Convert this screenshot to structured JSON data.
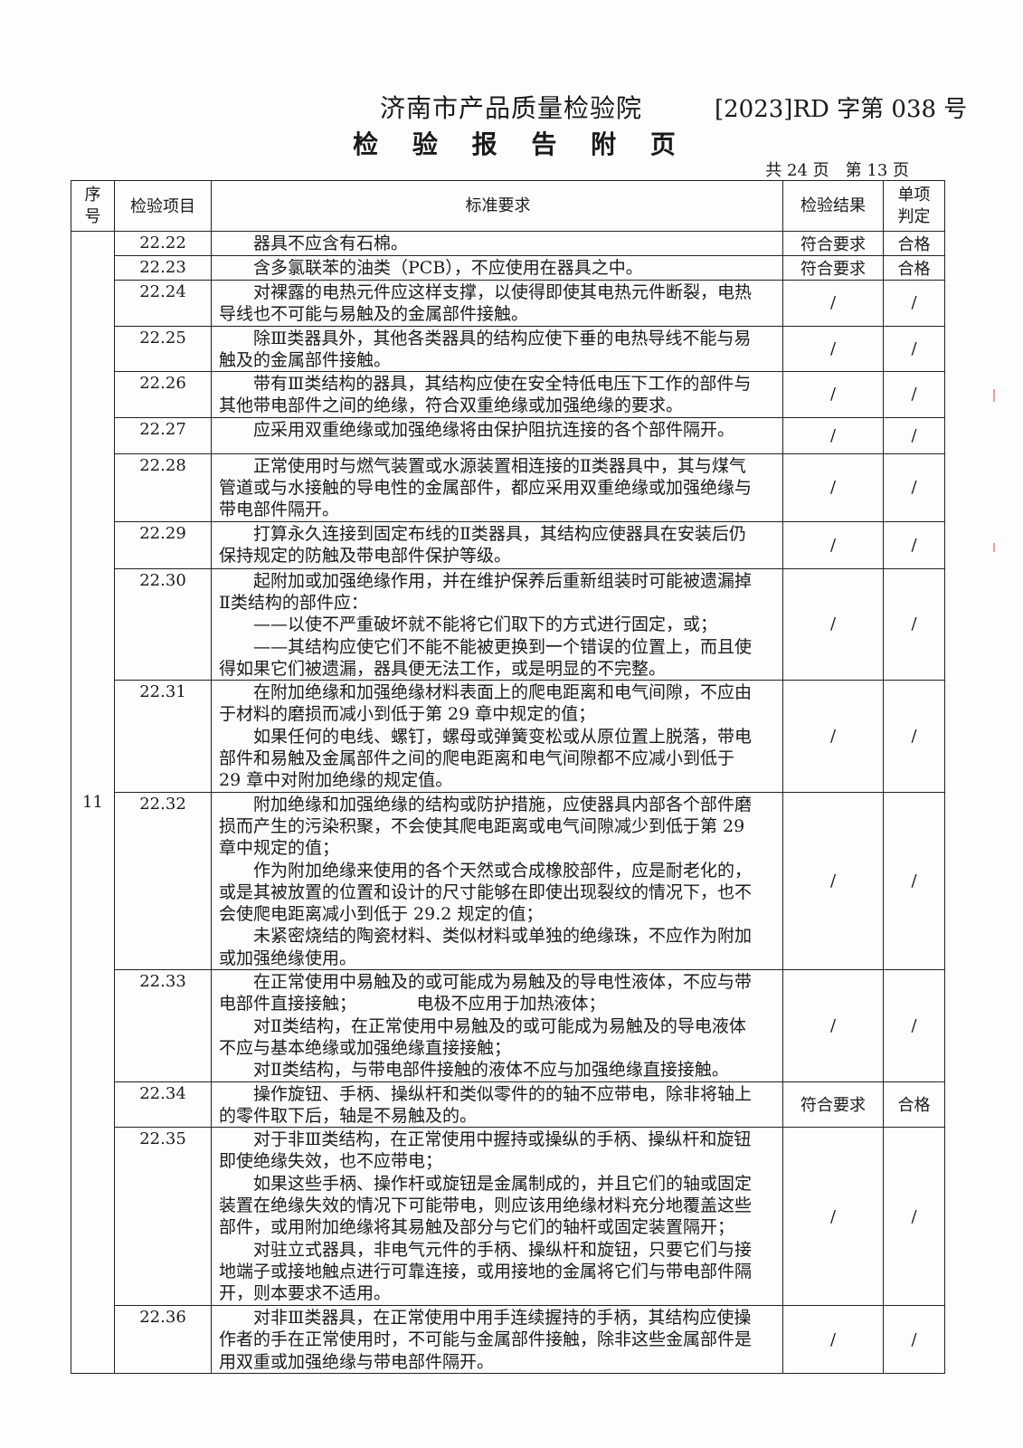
{
  "header": {
    "organization": "济南市产品质量检验院",
    "report_number": "[2023]RD 字第 038 号",
    "title": "检 验 报 告 附 页",
    "page_info": "共 24 页　第 13 页"
  },
  "table": {
    "columns": [
      "序\n号",
      "检验项目",
      "标准要求",
      "检验结果",
      "单项\n判定"
    ],
    "group_no": "11",
    "rows": [
      {
        "item": "22.22",
        "lines": [
          "　　器具不应含有石棉。"
        ],
        "result": "符合要求",
        "judgement": "合格"
      },
      {
        "item": "22.23",
        "lines": [
          "　　含多氯联苯的油类（PCB），不应使用在器具之中。"
        ],
        "result": "符合要求",
        "judgement": "合格"
      },
      {
        "item": "22.24",
        "lines": [
          "　　对裸露的电热元件应这样支撑，以使得即使其电热元件断裂，电热",
          "导线也不可能与易触及的金属部件接触。"
        ],
        "result": "/",
        "judgement": "/"
      },
      {
        "item": "22.25",
        "lines": [
          "　　除Ⅲ类器具外，其他各类器具的结构应使下垂的电热导线不能与易",
          "触及的金属部件接触。"
        ],
        "result": "/",
        "judgement": "/"
      },
      {
        "item": "22.26",
        "lines": [
          "　　带有Ⅲ类结构的器具，其结构应使在安全特低电压下工作的部件与",
          "其他带电部件之间的绝缘，符合双重绝缘或加强绝缘的要求。"
        ],
        "result": "/",
        "judgement": "/"
      },
      {
        "item": "22.27",
        "lines": [
          "　　应采用双重绝缘或加强绝缘将由保护阻抗连接的各个部件隔开。"
        ],
        "result": "/",
        "judgement": "/"
      },
      {
        "item": "22.28",
        "lines": [
          "　　正常使用时与燃气装置或水源装置相连接的Ⅱ类器具中，其与煤气",
          "管道或与水接触的导电性的金属部件，都应采用双重绝缘或加强绝缘与",
          "带电部件隔开。"
        ],
        "result": "/",
        "judgement": "/"
      },
      {
        "item": "22.29",
        "lines": [
          "　　打算永久连接到固定布线的Ⅱ类器具，其结构应使器具在安装后仍",
          "保持规定的防触及带电部件保护等级。"
        ],
        "result": "/",
        "judgement": "/"
      },
      {
        "item": "22.30",
        "lines": [
          "　　起附加或加强绝缘作用，并在维护保养后重新组装时可能被遗漏掉",
          "Ⅱ类结构的部件应：",
          "　　——以使不严重破坏就不能将它们取下的方式进行固定，或；",
          "　　——其结构应使它们不能不能被更换到一个错误的位置上，而且使",
          "得如果它们被遗漏，器具便无法工作，或是明显的不完整。"
        ],
        "result": "/",
        "judgement": "/"
      },
      {
        "item": "22.31",
        "lines": [
          "　　在附加绝缘和加强绝缘材料表面上的爬电距离和电气间隙，不应由",
          "于材料的磨损而减小到低于第 29 章中规定的值；",
          "　　如果任何的电线、螺钉，螺母或弹簧变松或从原位置上脱落，带电",
          "部件和易触及金属部件之间的爬电距离和电气间隙都不应减小到低于",
          "29 章中对附加绝缘的规定值。"
        ],
        "result": "/",
        "judgement": "/"
      },
      {
        "item": "22.32",
        "lines": [
          "　　附加绝缘和加强绝缘的结构或防护措施，应使器具内部各个部件磨",
          "损而产生的污染积聚，不会使其爬电距离或电气间隙减少到低于第 29",
          "章中规定的值；",
          "　　作为附加绝缘来使用的各个天然或合成橡胶部件，应是耐老化的，",
          "或是其被放置的位置和设计的尺寸能够在即使出现裂纹的情况下，也不",
          "会使爬电距离减小到低于 29.2 规定的值；",
          "　　未紧密烧结的陶瓷材料、类似材料或单独的绝缘珠，不应作为附加",
          "或加强绝缘使用。"
        ],
        "result": "/",
        "judgement": "/"
      },
      {
        "item": "22.33",
        "lines": [
          "　　在正常使用中易触及的或可能成为易触及的导电性液体，不应与带",
          "电部件直接接触；　　　　电极不应用于加热液体；",
          "　　对Ⅱ类结构，在正常使用中易触及的或可能成为易触及的导电液体",
          "不应与基本绝缘或加强绝缘直接接触；",
          "　　对Ⅱ类结构，与带电部件接触的液体不应与加强绝缘直接接触。"
        ],
        "result": "/",
        "judgement": "/"
      },
      {
        "item": "22.34",
        "lines": [
          "　　操作旋钮、手柄、操纵杆和类似零件的的轴不应带电，除非将轴上",
          "的零件取下后，轴是不易触及的。"
        ],
        "result": "符合要求",
        "judgement": "合格"
      },
      {
        "item": "22.35",
        "lines": [
          "　　对于非Ⅲ类结构，在正常使用中握持或操纵的手柄、操纵杆和旋钮",
          "即使绝缘失效，也不应带电；",
          "　　如果这些手柄、操作杆或旋钮是金属制成的，并且它们的轴或固定",
          "装置在绝缘失效的情况下可能带电，则应该用绝缘材料充分地覆盖这些",
          "部件，或用附加绝缘将其易触及部分与它们的轴杆或固定装置隔开；",
          "　　对驻立式器具，非电气元件的手柄、操纵杆和旋钮，只要它们与接",
          "地端子或接地触点进行可靠连接，或用接地的金属将它们与带电部件隔",
          "开，则本要求不适用。"
        ],
        "result": "/",
        "judgement": "/"
      },
      {
        "item": "22.36",
        "lines": [
          "　　对非Ⅲ类器具，在正常使用中用手连续握持的手柄，其结构应使操",
          "作者的手在正常使用时，不可能与金属部件接触，除非这些金属部件是",
          "用双重或加强绝缘与带电部件隔开。"
        ],
        "result": "/",
        "judgement": "/"
      }
    ]
  }
}
